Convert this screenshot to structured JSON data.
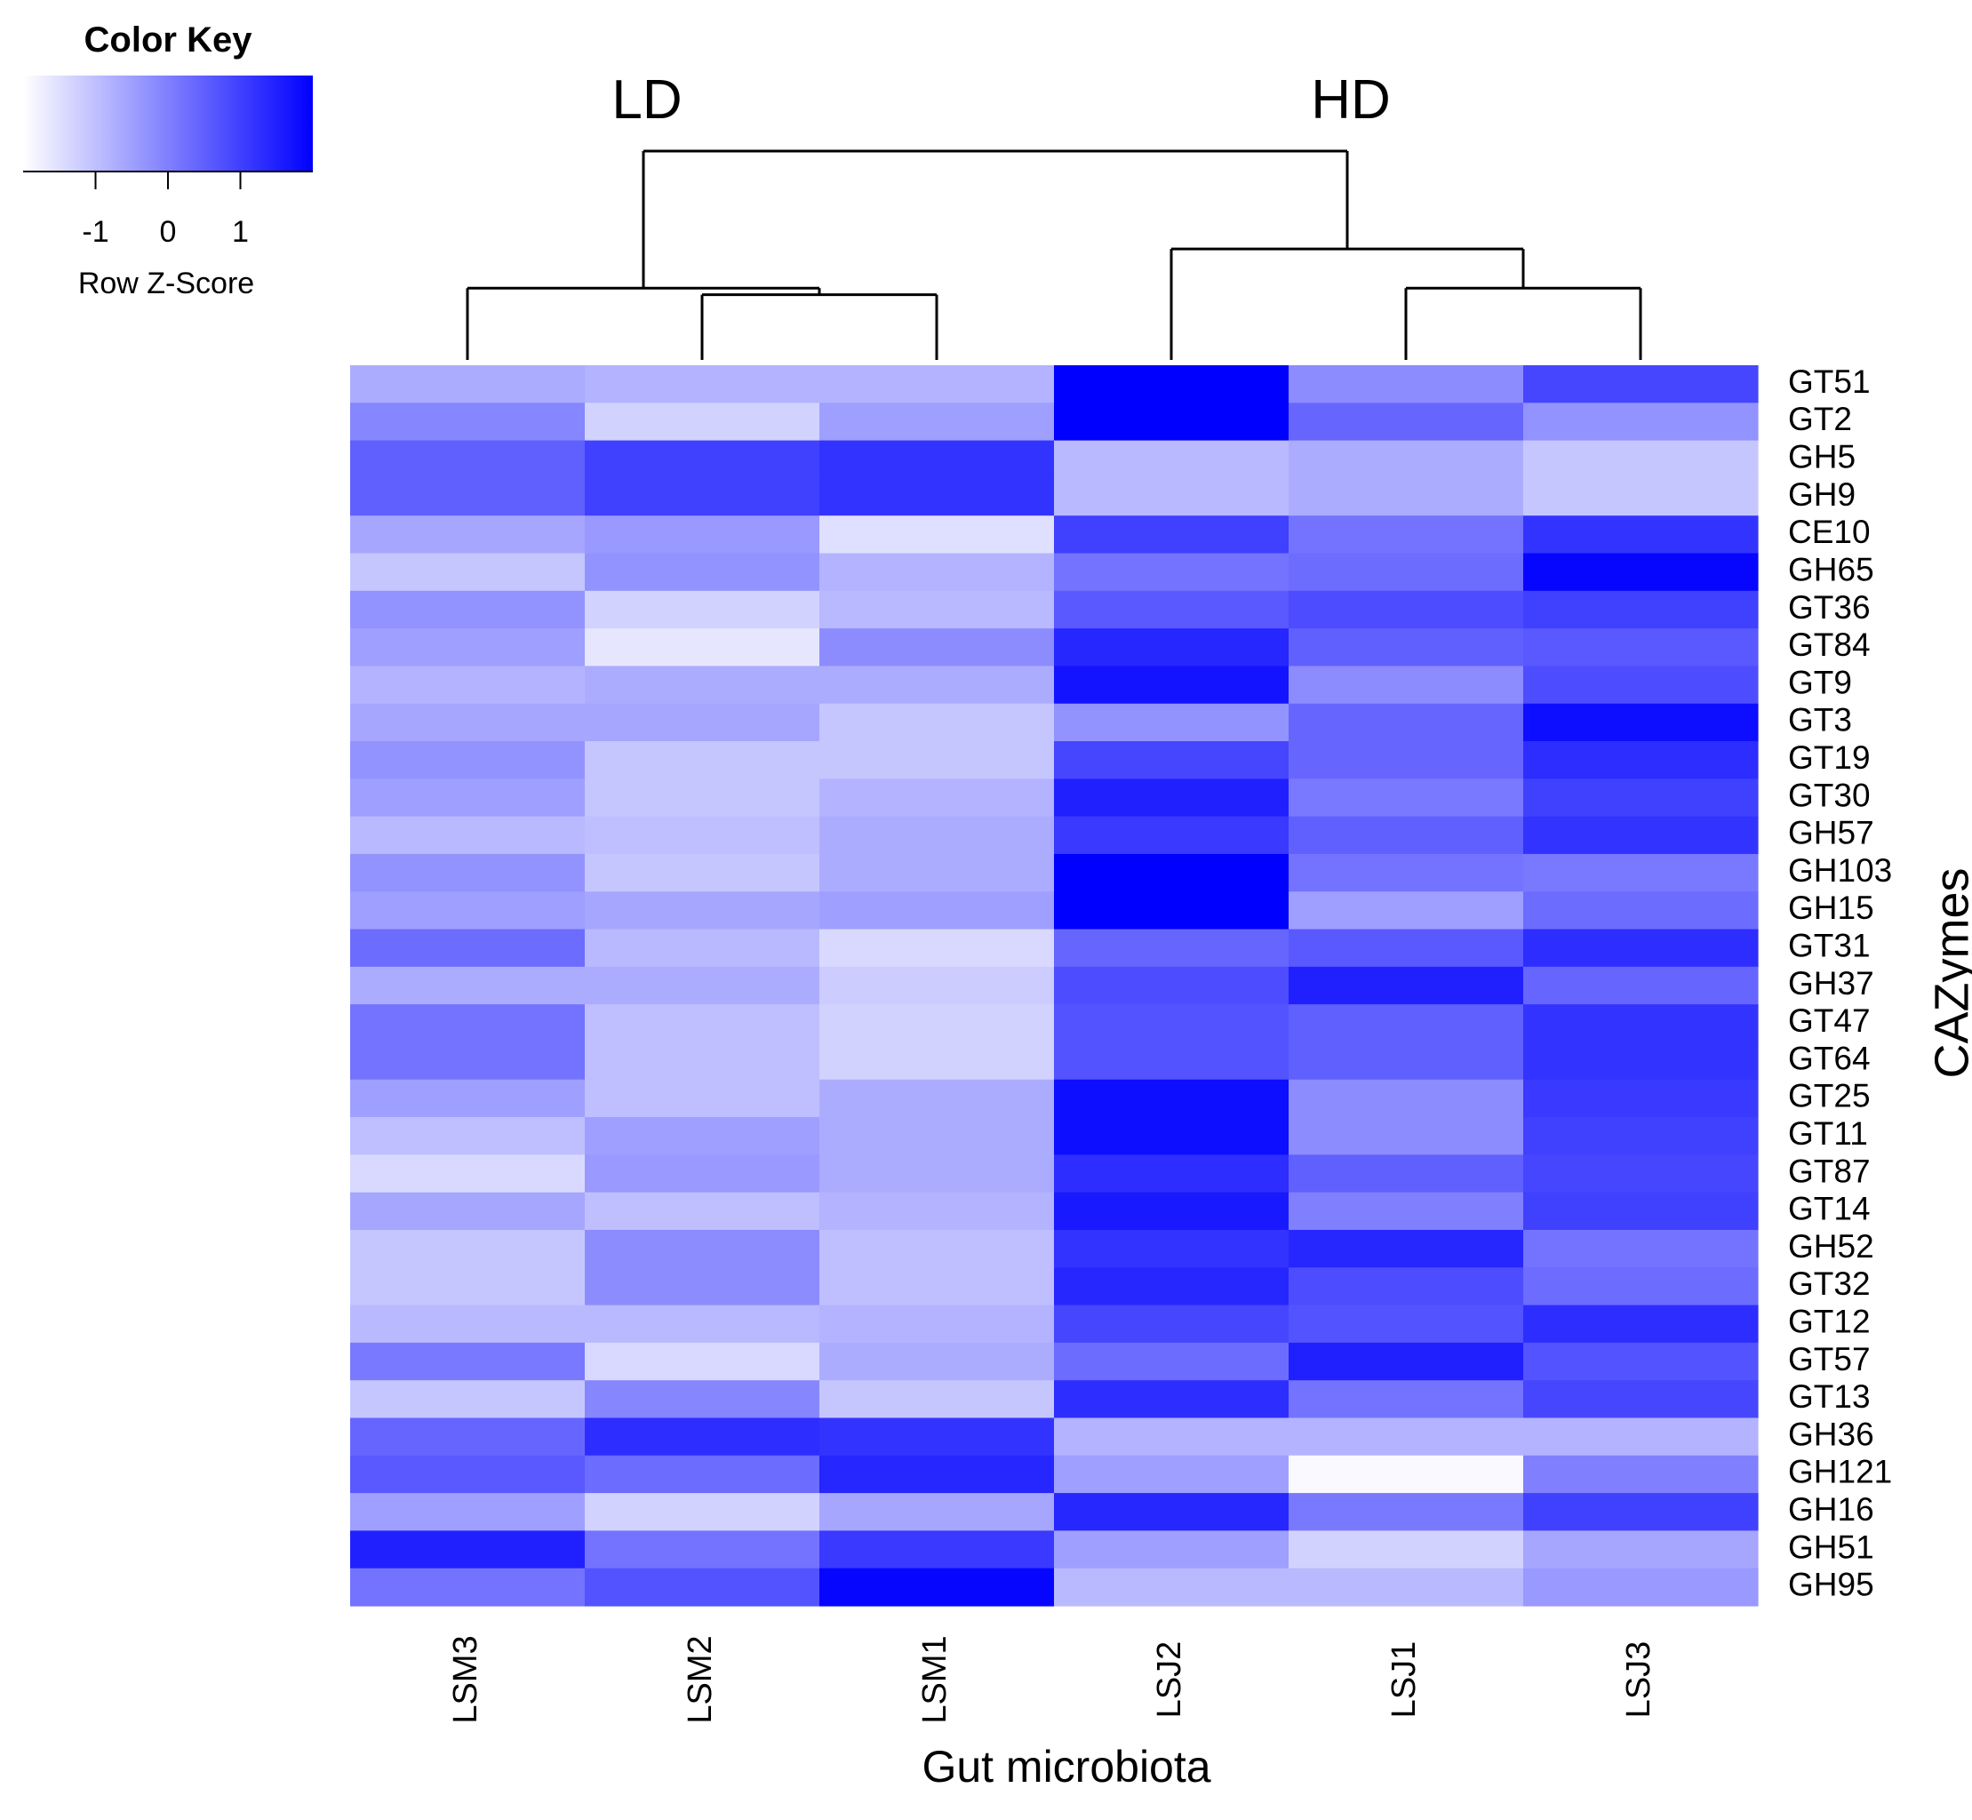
{
  "chart_data": {
    "type": "heatmap",
    "xlabel": "Gut microbiota",
    "ylabel": "CAZymes",
    "columns": [
      "LSM3",
      "LSM2",
      "LSM1",
      "LSJ2",
      "LSJ1",
      "LSJ3"
    ],
    "rows": [
      "GT51",
      "GT2",
      "GH5",
      "GH9",
      "CE10",
      "GH65",
      "GT36",
      "GT84",
      "GT9",
      "GT3",
      "GT19",
      "GT30",
      "GH57",
      "GH103",
      "GH15",
      "GT31",
      "GH37",
      "GT47",
      "GT64",
      "GT25",
      "GT11",
      "GT87",
      "GT14",
      "GH52",
      "GT32",
      "GT12",
      "GT57",
      "GT13",
      "GH36",
      "GH121",
      "GH16",
      "GH51",
      "GH95"
    ],
    "values": [
      [
        -0.7,
        -0.8,
        -0.8,
        2.0,
        -0.2,
        0.9
      ],
      [
        -0.1,
        -1.3,
        -0.5,
        2.0,
        0.4,
        -0.3
      ],
      [
        0.5,
        1.0,
        1.2,
        -0.9,
        -0.7,
        -1.1
      ],
      [
        0.5,
        1.0,
        1.2,
        -0.9,
        -0.7,
        -1.1
      ],
      [
        -0.6,
        -0.4,
        -1.5,
        1.0,
        0.2,
        1.2
      ],
      [
        -1.1,
        -0.3,
        -0.8,
        0.2,
        0.3,
        1.9
      ],
      [
        -0.3,
        -1.3,
        -0.9,
        0.6,
        0.8,
        1.0
      ],
      [
        -0.5,
        -1.6,
        -0.2,
        1.4,
        0.5,
        0.6
      ],
      [
        -0.8,
        -0.7,
        -0.7,
        1.7,
        -0.2,
        0.8
      ],
      [
        -0.6,
        -0.6,
        -1.1,
        -0.3,
        0.4,
        1.8
      ],
      [
        -0.3,
        -1.1,
        -1.1,
        0.9,
        0.4,
        1.3
      ],
      [
        -0.5,
        -1.1,
        -0.8,
        1.5,
        0.1,
        1.0
      ],
      [
        -0.9,
        -1.0,
        -0.7,
        1.1,
        0.5,
        1.2
      ],
      [
        -0.3,
        -1.1,
        -0.7,
        2.0,
        0.2,
        0.1
      ],
      [
        -0.5,
        -0.6,
        -0.5,
        2.0,
        -0.5,
        0.3
      ],
      [
        0.3,
        -0.9,
        -1.4,
        0.4,
        0.6,
        1.3
      ],
      [
        -0.7,
        -0.7,
        -1.2,
        0.8,
        1.5,
        0.4
      ],
      [
        0.2,
        -1.0,
        -1.3,
        0.7,
        0.5,
        1.2
      ],
      [
        0.2,
        -1.0,
        -1.3,
        0.7,
        0.5,
        1.2
      ],
      [
        -0.5,
        -1.0,
        -0.7,
        1.8,
        -0.2,
        1.1
      ],
      [
        -1.0,
        -0.5,
        -0.7,
        1.8,
        -0.2,
        1.0
      ],
      [
        -1.4,
        -0.4,
        -0.7,
        1.3,
        0.5,
        0.9
      ],
      [
        -0.6,
        -1.0,
        -0.8,
        1.6,
        0.0,
        1.0
      ],
      [
        -1.1,
        -0.2,
        -1.0,
        1.2,
        1.4,
        0.2
      ],
      [
        -1.1,
        -0.2,
        -1.0,
        1.4,
        0.8,
        0.3
      ],
      [
        -0.9,
        -0.9,
        -0.8,
        0.9,
        0.7,
        1.3
      ],
      [
        0.1,
        -1.4,
        -0.7,
        0.3,
        1.5,
        0.7
      ],
      [
        -1.1,
        -0.1,
        -1.1,
        1.3,
        0.2,
        0.9
      ],
      [
        0.4,
        1.3,
        1.2,
        -0.8,
        -0.8,
        -0.8
      ],
      [
        0.6,
        0.3,
        1.4,
        -0.5,
        -1.9,
        0.0
      ],
      [
        -0.5,
        -1.3,
        -0.6,
        1.4,
        0.1,
        1.0
      ],
      [
        1.5,
        0.2,
        1.1,
        -0.5,
        -1.3,
        -0.6
      ],
      [
        0.2,
        0.7,
        1.9,
        -0.9,
        -0.9,
        -0.4
      ]
    ],
    "color_key": {
      "title": "Color Key",
      "label": "Row Z-Score",
      "ticks": [
        "-1",
        "0",
        "1"
      ],
      "tick_values": [
        -1,
        0,
        1
      ],
      "range": [
        -2,
        2
      ],
      "low_color": "#ffffff",
      "high_color": "#0000ff"
    },
    "dendrogram": {
      "cluster_labels": [
        "LD",
        "HD"
      ],
      "merge_heights": {
        "LSM2_LSM1": 0.5,
        "LSJ1_LSJ3": 0.55,
        "LSM3_LSM12": 0.55,
        "LSJ2_LSJ13": 0.85,
        "root": 1.6
      },
      "max_height": 1.6
    }
  }
}
